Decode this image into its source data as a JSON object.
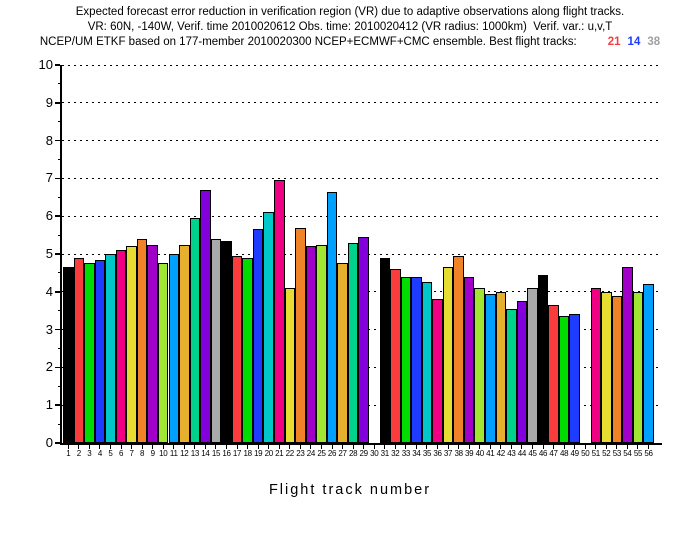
{
  "header": {
    "line1": "Expected forecast error reduction in verification region (VR) due to adaptive observations along flight tracks.",
    "line2": "VR: 60N, -140W, Verif. time 2010020612 Obs. time: 2010020412 (VR radius: 1000km)  Verif. var.: u,v,T",
    "line3_prefix": "NCEP/UM ETKF based on 177-member 2010020300 NCEP+ECMWF+CMC ensemble. Best flight tracks:",
    "best_tracks": [
      {
        "label": "21",
        "color": "#fa3c3c"
      },
      {
        "label": "14",
        "color": "#1e3cff"
      },
      {
        "label": "38",
        "color": "#a0a0a0"
      }
    ]
  },
  "chart_data": {
    "type": "bar",
    "title": "Expected forecast error reduction in verification region (VR) due to adaptive observations along flight tracks.",
    "subtitle1": "VR: 60N, -140W, Verif. time 2010020612 Obs. time: 2010020412 (VR radius: 1000km)  Verif. var.: u,v,T",
    "subtitle2": "NCEP/UM ETKF based on 177-member 2010020300 NCEP+ECMWF+CMC ensemble. Best flight tracks: 21 14 38",
    "xlabel": "Flight track number",
    "ylabel": "",
    "ylim": [
      0,
      10
    ],
    "ytick_step": 1,
    "grid": "horizontal dotted lines at every integer, minor ticks at halves",
    "legend_position": "none",
    "best_tracks": [
      "21",
      "14",
      "38"
    ],
    "missing_tracks": [
      30,
      50
    ],
    "palette_cycle": [
      "#000000",
      "#fa3c3c",
      "#00dc00",
      "#1e3cff",
      "#00c8c8",
      "#f00082",
      "#e6dc32",
      "#f08228",
      "#a000c8",
      "#a0e632",
      "#00a0ff",
      "#e6af2d",
      "#00d28c",
      "#8200dc",
      "#aaaaaa"
    ],
    "color_rule": "bar i uses palette_cycle[(i-1) mod 15]",
    "categories": [
      "1",
      "2",
      "3",
      "4",
      "5",
      "6",
      "7",
      "8",
      "9",
      "10",
      "11",
      "12",
      "13",
      "14",
      "15",
      "16",
      "17",
      "18",
      "19",
      "20",
      "21",
      "22",
      "23",
      "24",
      "25",
      "26",
      "27",
      "28",
      "29",
      "30",
      "31",
      "32",
      "33",
      "34",
      "35",
      "36",
      "37",
      "38",
      "39",
      "40",
      "41",
      "42",
      "43",
      "44",
      "45",
      "46",
      "47",
      "48",
      "49",
      "50",
      "51",
      "52",
      "53",
      "54",
      "55",
      "56"
    ],
    "values": [
      4.65,
      4.9,
      4.75,
      4.85,
      5.0,
      5.1,
      5.2,
      5.4,
      5.25,
      4.75,
      5.0,
      5.25,
      5.95,
      6.7,
      5.4,
      5.35,
      4.95,
      4.9,
      5.65,
      6.1,
      6.95,
      4.1,
      5.7,
      5.2,
      5.25,
      6.65,
      4.75,
      5.3,
      5.45,
      null,
      4.9,
      4.6,
      4.4,
      4.4,
      4.25,
      3.8,
      4.65,
      4.95,
      4.4,
      4.1,
      3.95,
      4.0,
      3.55,
      3.75,
      4.1,
      4.45,
      3.65,
      3.35,
      3.4,
      null,
      4.1,
      4.0,
      3.9,
      4.65,
      4.0,
      4.2
    ]
  }
}
